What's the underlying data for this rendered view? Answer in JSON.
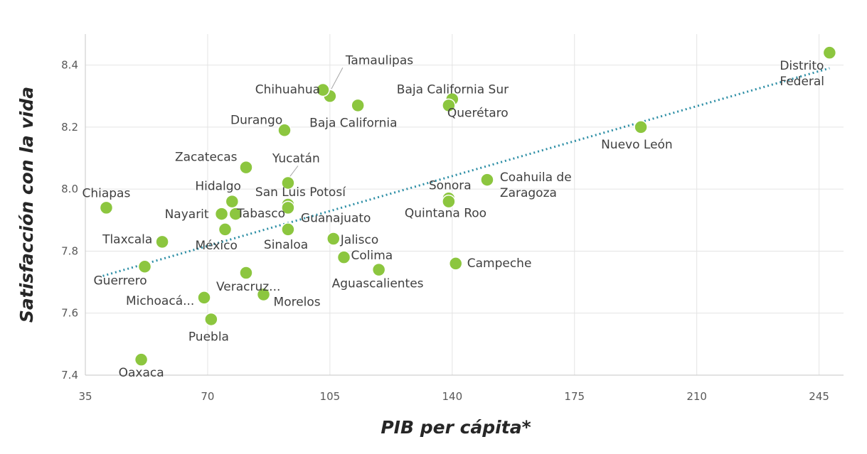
{
  "chart_data": {
    "type": "scatter",
    "xlabel": "PIB per cápita*",
    "ylabel": "Satisfacción con la vida",
    "xlim": [
      35,
      252
    ],
    "ylim": [
      7.4,
      8.5
    ],
    "x_ticks": [
      35,
      70,
      105,
      140,
      175,
      210,
      245
    ],
    "y_ticks": [
      7.4,
      7.6,
      7.8,
      8.0,
      8.2,
      8.4
    ],
    "y_tick_labels": [
      "7.4",
      "7.6",
      "7.8",
      "8.0",
      "8.2",
      "8.4"
    ],
    "grid": true,
    "trendline": {
      "style": "dotted",
      "color": "#2e8fa6",
      "from": [
        40,
        7.72
      ],
      "to": [
        248,
        8.39
      ]
    },
    "point_color": "#8cc63f",
    "points": [
      {
        "label": "Distrito Federal",
        "x": 248,
        "y": 8.44
      },
      {
        "label": "Tamaulipas",
        "x": 105,
        "y": 8.3
      },
      {
        "label": "Chihuahua",
        "x": 103,
        "y": 8.32
      },
      {
        "label": "Baja California Sur",
        "x": 140,
        "y": 8.29
      },
      {
        "label": "Querétaro",
        "x": 139,
        "y": 8.27
      },
      {
        "label": "Baja California",
        "x": 113,
        "y": 8.27
      },
      {
        "label": "Durango",
        "x": 92,
        "y": 8.19
      },
      {
        "label": "Nuevo León",
        "x": 194,
        "y": 8.2
      },
      {
        "label": "Zacatecas",
        "x": 81,
        "y": 8.07
      },
      {
        "label": "Yucatán",
        "x": 93,
        "y": 8.02
      },
      {
        "label": "Coahuila de Zaragoza",
        "x": 150,
        "y": 8.03
      },
      {
        "label": "Hidalgo",
        "x": 77,
        "y": 7.96
      },
      {
        "label": "Sonora",
        "x": 139,
        "y": 7.97
      },
      {
        "label": "San Luis Potosí",
        "x": 93,
        "y": 7.95
      },
      {
        "label": "Chiapas",
        "x": 41,
        "y": 7.94
      },
      {
        "label": "Nayarit",
        "x": 74,
        "y": 7.92
      },
      {
        "label": "Tabasco",
        "x": 78,
        "y": 7.92
      },
      {
        "label": "Guanajuato",
        "x": 93,
        "y": 7.94
      },
      {
        "label": "Quintana Roo",
        "x": 139,
        "y": 7.96
      },
      {
        "label": "México",
        "x": 75,
        "y": 7.87
      },
      {
        "label": "Sinaloa",
        "x": 93,
        "y": 7.87
      },
      {
        "label": "Tlaxcala",
        "x": 57,
        "y": 7.83
      },
      {
        "label": "Jalisco",
        "x": 106,
        "y": 7.84
      },
      {
        "label": "Colima",
        "x": 109,
        "y": 7.78
      },
      {
        "label": "Campeche",
        "x": 141,
        "y": 7.76
      },
      {
        "label": "Guerrero",
        "x": 52,
        "y": 7.75
      },
      {
        "label": "Aguascalientes",
        "x": 119,
        "y": 7.74
      },
      {
        "label": "Veracruz...",
        "x": 81,
        "y": 7.73
      },
      {
        "label": "Michoacá...",
        "x": 69,
        "y": 7.65
      },
      {
        "label": "Morelos",
        "x": 86,
        "y": 7.66
      },
      {
        "label": "Puebla",
        "x": 71,
        "y": 7.58
      },
      {
        "label": "Oaxaca",
        "x": 51,
        "y": 7.45
      }
    ]
  }
}
